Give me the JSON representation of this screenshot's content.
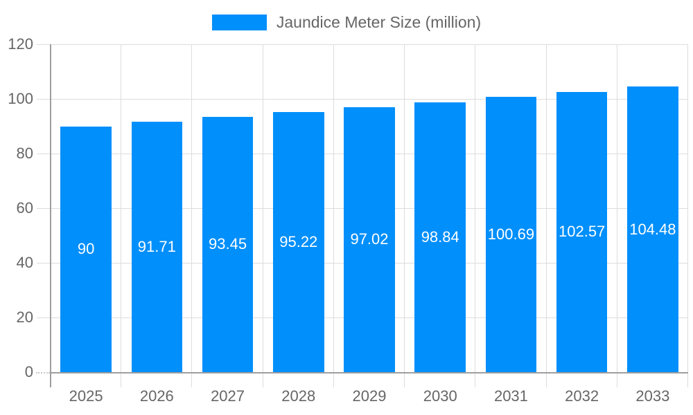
{
  "legend": {
    "label": "Jaundice Meter Size (million)"
  },
  "chart_data": {
    "type": "bar",
    "title": "Jaundice Meter Size (million)",
    "categories": [
      "2025",
      "2026",
      "2027",
      "2028",
      "2029",
      "2030",
      "2031",
      "2032",
      "2033"
    ],
    "series": [
      {
        "name": "Jaundice Meter Size (million)",
        "values": [
          90,
          91.71,
          93.45,
          95.22,
          97.02,
          98.84,
          100.69,
          102.57,
          104.48
        ]
      }
    ],
    "value_labels": [
      "90",
      "91.71",
      "93.45",
      "95.22",
      "97.02",
      "98.84",
      "100.69",
      "102.57",
      "104.48"
    ],
    "xlabel": "",
    "ylabel": "",
    "ylim": [
      0,
      120
    ],
    "yticks": [
      0,
      20,
      40,
      60,
      80,
      100,
      120
    ],
    "grid": true,
    "legend_position": "top",
    "colors": {
      "bar": "#008FFB",
      "grid": "#dcdcdc",
      "axis": "#9e9e9e",
      "text": "#666666",
      "value_label": "#ffffff"
    }
  }
}
